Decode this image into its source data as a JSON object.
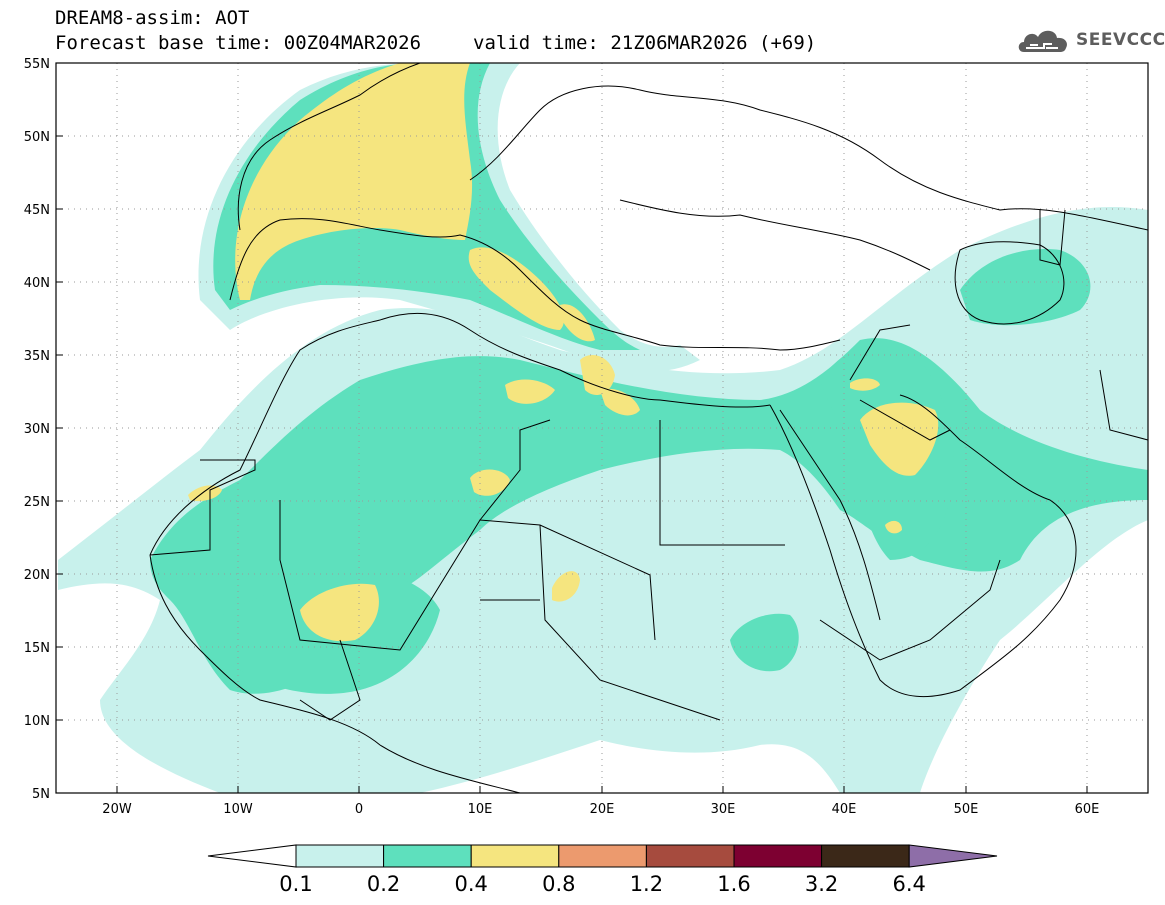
{
  "header": {
    "title": "DREAM8-assim: AOT",
    "base_time": "Forecast base time: 00Z04MAR2026",
    "valid_time": "valid time: 21Z06MAR2026 (+69)"
  },
  "logo": {
    "text": "SEEVCCC",
    "icon": "cloud-icon"
  },
  "map": {
    "lat_labels": [
      "55N",
      "50N",
      "45N",
      "40N",
      "35N",
      "30N",
      "25N",
      "20N",
      "15N",
      "10N",
      "5N"
    ],
    "lon_labels": [
      "20W",
      "10W",
      "0",
      "10E",
      "20E",
      "30E",
      "40E",
      "50E",
      "60E"
    ],
    "extent": {
      "lon": [
        -25,
        65
      ],
      "lat": [
        5,
        55
      ]
    }
  },
  "colorbar": {
    "ticks": [
      "0.1",
      "0.2",
      "0.4",
      "0.8",
      "1.2",
      "1.6",
      "3.2",
      "6.4"
    ],
    "colors": [
      "#ffffff",
      "#c8f1ec",
      "#5ee0bd",
      "#f5e57f",
      "#ec9a6e",
      "#a64b3e",
      "#7d0031",
      "#3b2818",
      "#8e6ea8"
    ]
  }
}
